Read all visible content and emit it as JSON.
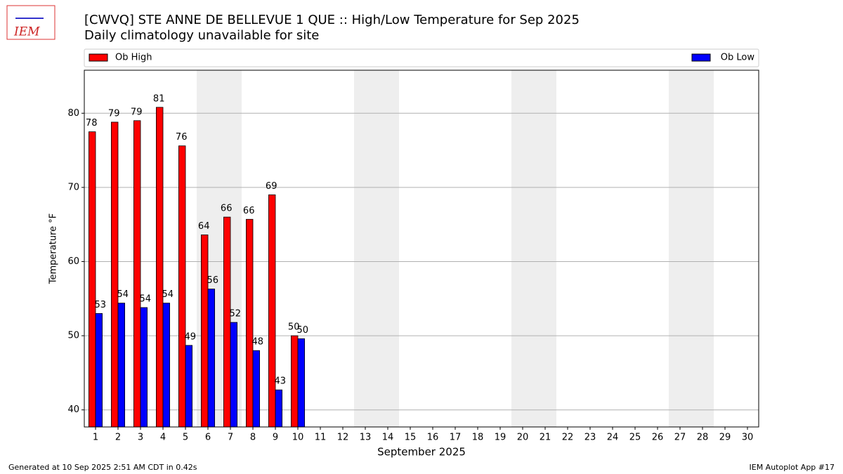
{
  "chart_data": {
    "type": "bar",
    "title": "[CWVQ] STE ANNE DE BELLEVUE 1  QUE :: High/Low Temperature for Sep 2025",
    "subtitle": "Daily climatology unavailable for site",
    "logo_text": "IEM",
    "x_label": "September 2025",
    "y_label": "Temperature °F",
    "x": [
      1,
      2,
      3,
      4,
      5,
      6,
      7,
      8,
      9,
      10,
      11,
      12,
      13,
      14,
      15,
      16,
      17,
      18,
      19,
      20,
      21,
      22,
      23,
      24,
      25,
      26,
      27,
      28,
      29,
      30
    ],
    "xlim": [
      0.5,
      30.5
    ],
    "xticks": [
      1,
      2,
      3,
      4,
      5,
      6,
      7,
      8,
      9,
      10,
      11,
      12,
      13,
      14,
      15,
      16,
      17,
      18,
      19,
      20,
      21,
      22,
      23,
      24,
      25,
      26,
      27,
      28,
      29,
      30
    ],
    "ylim": [
      37.7,
      85.8
    ],
    "yticks": [
      40,
      50,
      60,
      70,
      80
    ],
    "grid": true,
    "legend": "top",
    "shaded_spans": [
      [
        6,
        7
      ],
      [
        13,
        14
      ],
      [
        20,
        21
      ],
      [
        27,
        28
      ]
    ],
    "series": [
      {
        "name": "Ob High",
        "color": "#ff0000",
        "values": [
          77.5,
          78.8,
          79.0,
          80.8,
          75.6,
          63.6,
          66.0,
          65.7,
          69.0,
          50.0,
          null,
          null,
          null,
          null,
          null,
          null,
          null,
          null,
          null,
          null,
          null,
          null,
          null,
          null,
          null,
          null,
          null,
          null,
          null,
          null
        ],
        "value_labels": [
          "78",
          "79",
          "79",
          "81",
          "76",
          "64",
          "66",
          "66",
          "69",
          "50",
          null,
          null,
          null,
          null,
          null,
          null,
          null,
          null,
          null,
          null,
          null,
          null,
          null,
          null,
          null,
          null,
          null,
          null,
          null,
          null
        ]
      },
      {
        "name": "Ob Low",
        "color": "#0000ff",
        "values": [
          53.0,
          54.4,
          53.8,
          54.4,
          48.7,
          56.3,
          51.8,
          48.0,
          42.7,
          49.6,
          null,
          null,
          null,
          null,
          null,
          null,
          null,
          null,
          null,
          null,
          null,
          null,
          null,
          null,
          null,
          null,
          null,
          null,
          null,
          null
        ],
        "value_labels": [
          "53",
          "54",
          "54",
          "54",
          "49",
          "56",
          "52",
          "48",
          "43",
          "50",
          null,
          null,
          null,
          null,
          null,
          null,
          null,
          null,
          null,
          null,
          null,
          null,
          null,
          null,
          null,
          null,
          null,
          null,
          null,
          null
        ]
      }
    ],
    "footer_left": "Generated at 10 Sep 2025 2:51 AM CDT in 0.42s",
    "footer_right": "IEM Autoplot App #17"
  }
}
